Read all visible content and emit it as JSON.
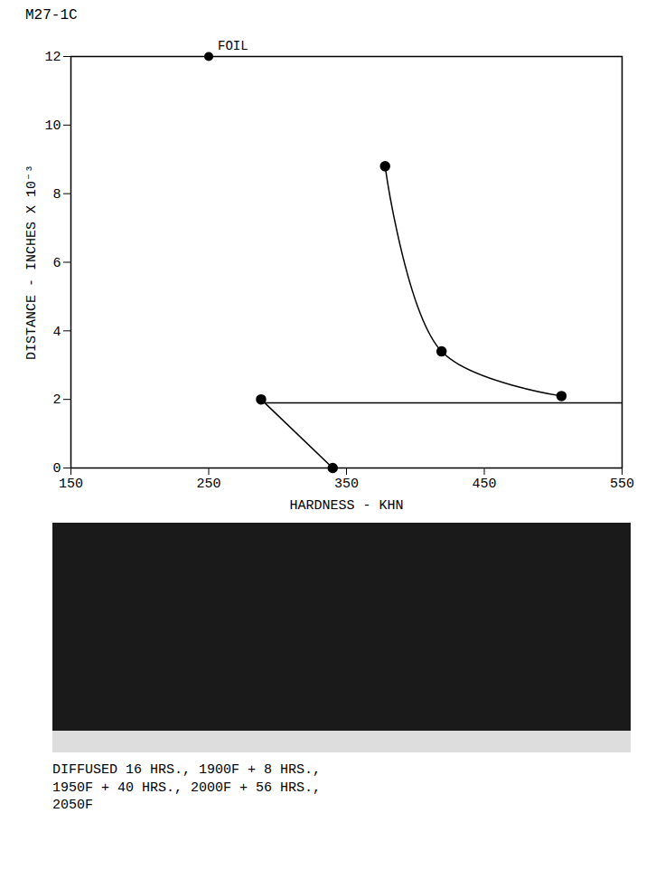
{
  "chart_data": {
    "type": "line",
    "title": "M27-1C",
    "x_label": "HARDNESS - KHN",
    "y_label": "DISTANCE - INCHES X 10⁻³",
    "xlim": [
      150,
      550
    ],
    "xticks": [
      150,
      250,
      350,
      450,
      550
    ],
    "ylim": [
      0,
      12
    ],
    "yticks": [
      0,
      2,
      4,
      6,
      8,
      10,
      12
    ],
    "series": [
      {
        "x": [
          340,
          288
        ],
        "values": [
          0,
          2.0
        ],
        "color": "#000000",
        "marker": "circle",
        "line_style": "solid"
      },
      {
        "x": [
          378,
          419,
          506
        ],
        "values": [
          8.8,
          3.4,
          2.1
        ],
        "color": "#000000",
        "marker": "circle",
        "line_style": "solid"
      },
      {
        "x": [
          288,
          550
        ],
        "values": [
          1.9,
          1.9
        ],
        "color": "#000000",
        "marker": "none",
        "line_style": "solid"
      }
    ],
    "annotations": [
      {
        "text": "FOIL",
        "x": 250,
        "y": 12
      }
    ],
    "caption": "DIFFUSED 16 HRS., 1900F + 8 HRS., 1950F + 40 HRS., 2000F + 56 HRS., 2050F",
    "grid": false
  }
}
